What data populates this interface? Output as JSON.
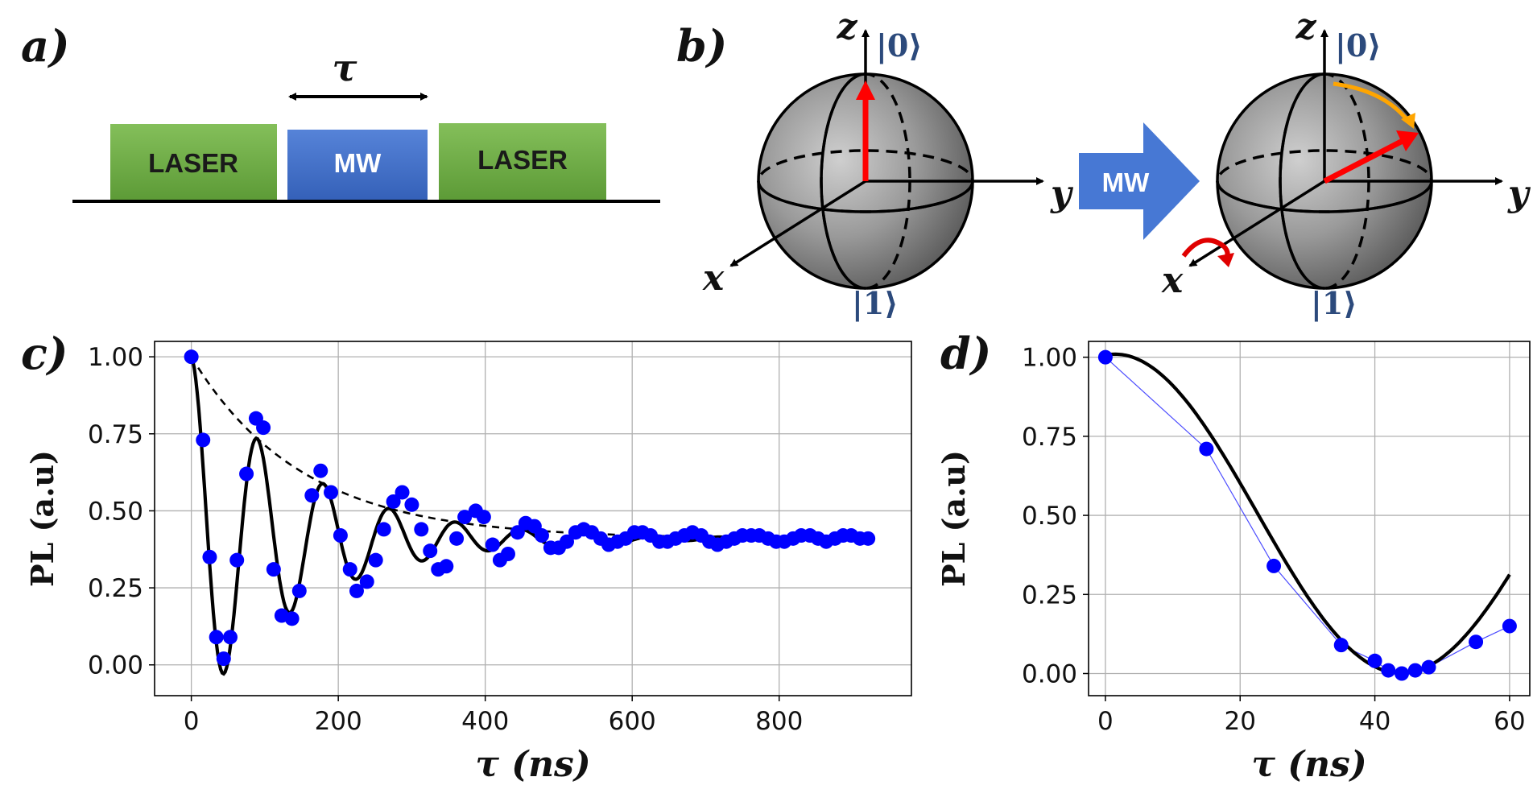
{
  "panels": {
    "a": {
      "label": "a)",
      "tau": "τ",
      "boxes": [
        "LASER",
        "MW",
        "LASER"
      ],
      "colors": {
        "laser": "#6aa543",
        "mw": "#3f6fc8"
      }
    },
    "b": {
      "label": "b)",
      "ket0": "|0⟩",
      "ket1": "|1⟩",
      "axis_z": "z",
      "axis_y": "y",
      "axis_x": "x",
      "mw_arrow": "MW",
      "colors": {
        "state_vector": "#ff0000",
        "rotation": "#ffa500",
        "mw_arrow": "#3f6fc8"
      }
    },
    "c": {
      "label": "c)"
    },
    "d": {
      "label": "d)"
    }
  },
  "chart_data": [
    {
      "panel": "c",
      "type": "scatter",
      "xlabel": "τ (ns)",
      "ylabel": "PL (a.u)",
      "xlim": [
        -50,
        980
      ],
      "ylim": [
        -0.1,
        1.05
      ],
      "xticks": [
        0,
        200,
        400,
        600,
        800
      ],
      "yticks": [
        0.0,
        0.25,
        0.5,
        0.75,
        1.0
      ],
      "xtick_labels": [
        "0",
        "200",
        "400",
        "600",
        "800"
      ],
      "ytick_labels": [
        "0.00",
        "0.25",
        "0.50",
        "0.75",
        "1.00"
      ],
      "grid": true,
      "colors": {
        "points": "#0000ff",
        "fit": "#000000",
        "envelope": "#000000"
      },
      "data_points": {
        "x": [
          0,
          16,
          25,
          34,
          44,
          53,
          62,
          75,
          88,
          98,
          112,
          123,
          137,
          147,
          164,
          176,
          190,
          203,
          216,
          225,
          239,
          251,
          262,
          275,
          287,
          300,
          313,
          325,
          336,
          347,
          361,
          372,
          387,
          398,
          410,
          420,
          431,
          444,
          455,
          467,
          477,
          489,
          500,
          511,
          523,
          534,
          545,
          557,
          568,
          580,
          591,
          603,
          614,
          625,
          637,
          648,
          659,
          671,
          682,
          694,
          705,
          716,
          728,
          739,
          750,
          762,
          773,
          785,
          796,
          807,
          819,
          830,
          842,
          853,
          864,
          876,
          887,
          898,
          910,
          921
        ],
        "y": [
          1.0,
          0.73,
          0.35,
          0.09,
          0.02,
          0.09,
          0.34,
          0.62,
          0.8,
          0.77,
          0.31,
          0.16,
          0.15,
          0.24,
          0.55,
          0.63,
          0.56,
          0.42,
          0.31,
          0.24,
          0.27,
          0.34,
          0.44,
          0.53,
          0.56,
          0.52,
          0.44,
          0.37,
          0.31,
          0.32,
          0.41,
          0.48,
          0.5,
          0.48,
          0.39,
          0.34,
          0.36,
          0.43,
          0.46,
          0.45,
          0.42,
          0.38,
          0.38,
          0.4,
          0.43,
          0.44,
          0.43,
          0.41,
          0.39,
          0.4,
          0.41,
          0.43,
          0.43,
          0.42,
          0.4,
          0.4,
          0.41,
          0.42,
          0.43,
          0.42,
          0.4,
          0.39,
          0.4,
          0.41,
          0.42,
          0.42,
          0.42,
          0.41,
          0.4,
          0.4,
          0.41,
          0.42,
          0.42,
          0.41,
          0.4,
          0.41,
          0.42,
          0.42,
          0.41,
          0.41
        ]
      },
      "fit": {
        "description_only": false,
        "offset": 0.41,
        "amplitude": 0.59,
        "decay_ns": 150,
        "period_ns": 90
      },
      "envelope": {
        "offset": 0.41,
        "amplitude": 0.59,
        "decay_ns": 150
      }
    },
    {
      "panel": "d",
      "type": "scatter",
      "xlabel": "τ (ns)",
      "ylabel": "PL (a.u)",
      "xlim": [
        -2.5,
        63
      ],
      "ylim": [
        -0.07,
        1.05
      ],
      "xticks": [
        0,
        20,
        40,
        60
      ],
      "yticks": [
        0.0,
        0.25,
        0.5,
        0.75,
        1.0
      ],
      "xtick_labels": [
        "0",
        "20",
        "40",
        "60"
      ],
      "ytick_labels": [
        "0.00",
        "0.25",
        "0.50",
        "0.75",
        "1.00"
      ],
      "grid": true,
      "colors": {
        "points": "#0000ff",
        "fit": "#000000",
        "connector": "#0000ff"
      },
      "data_points": {
        "x": [
          0,
          15,
          25,
          35,
          40,
          42,
          44,
          46,
          48,
          55,
          60
        ],
        "y": [
          1.0,
          0.71,
          0.34,
          0.09,
          0.04,
          0.01,
          0.0,
          0.01,
          0.02,
          0.1,
          0.15
        ]
      },
      "fit": {
        "offset": 0.5,
        "amplitude": 0.51,
        "period_ns": 85,
        "phase_ns": 1.5,
        "decay_ns": 2000
      }
    }
  ]
}
